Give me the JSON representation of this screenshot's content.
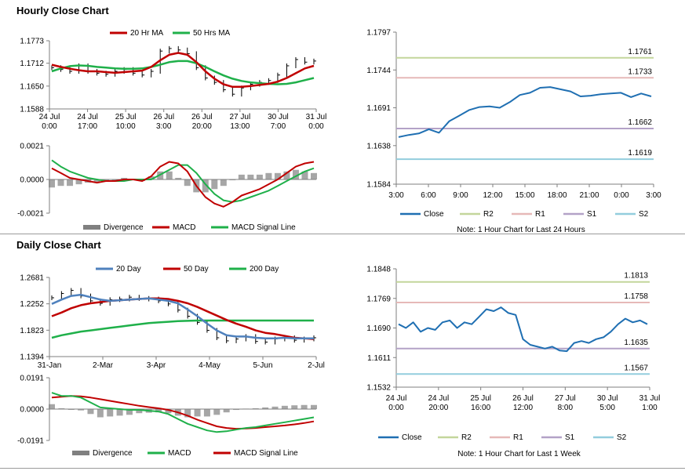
{
  "sections": {
    "hourly_title": "Hourly Close Chart",
    "daily_title": "Daily Close Chart"
  },
  "colors": {
    "price": "#000000",
    "ma_red": "#c00000",
    "ma_green": "#1fb04a",
    "ma_blue": "#4f81bd",
    "close": "#1f6fb2",
    "r2": "#c3d69b",
    "r1": "#e6b9b8",
    "s1": "#b3a2c7",
    "s2": "#93cddd",
    "divergence": "#808080",
    "axis": "#7f7f7f"
  },
  "chart_data": [
    {
      "id": "hourly_price",
      "type": "line",
      "legend": [
        "20 Hr MA",
        "50 Hrs MA"
      ],
      "ylim": [
        1.1588,
        1.1773
      ],
      "yticks": [
        "1.1773",
        "1.1712",
        "1.1650",
        "1.1588"
      ],
      "xticks": [
        [
          "24 Jul",
          "0:00"
        ],
        [
          "24 Jul",
          "17:00"
        ],
        [
          "25 Jul",
          "10:00"
        ],
        [
          "26 Jul",
          "3:00"
        ],
        [
          "26 Jul",
          "20:00"
        ],
        [
          "27 Jul",
          "13:00"
        ],
        [
          "30 Jul",
          "7:00"
        ],
        [
          "31 Jul",
          "0:00"
        ]
      ],
      "series": [
        {
          "name": "Price",
          "color": "price",
          "values": [
            1.17,
            1.1695,
            1.169,
            1.1705,
            1.169,
            1.1685,
            1.1682,
            1.169,
            1.1695,
            1.1685,
            1.168,
            1.169,
            1.1745,
            1.1752,
            1.1748,
            1.1738,
            1.17,
            1.1672,
            1.166,
            1.164,
            1.1628,
            1.1645,
            1.1655,
            1.166,
            1.1665,
            1.168,
            1.1705,
            1.1722,
            1.1715,
            1.1718
          ]
        },
        {
          "name": "20 Hr MA",
          "color": "ma_red",
          "values": [
            1.1708,
            1.1702,
            1.1697,
            1.1693,
            1.169,
            1.169,
            1.1688,
            1.1686,
            1.1688,
            1.169,
            1.1692,
            1.1702,
            1.172,
            1.1735,
            1.174,
            1.1735,
            1.1715,
            1.169,
            1.167,
            1.1655,
            1.1648,
            1.1648,
            1.165,
            1.1653,
            1.1656,
            1.1662,
            1.1672,
            1.1685,
            1.1698,
            1.1705
          ]
        },
        {
          "name": "50 Hrs MA",
          "color": "ma_green",
          "values": [
            1.169,
            1.1698,
            1.1704,
            1.1706,
            1.1705,
            1.1702,
            1.17,
            1.1698,
            1.1697,
            1.1697,
            1.1698,
            1.1702,
            1.1708,
            1.1715,
            1.1718,
            1.1718,
            1.1712,
            1.1702,
            1.169,
            1.1679,
            1.167,
            1.1664,
            1.166,
            1.1658,
            1.1656,
            1.1655,
            1.1656,
            1.166,
            1.1666,
            1.1672
          ]
        }
      ]
    },
    {
      "id": "hourly_macd",
      "type": "line",
      "legend": [
        "Divergence",
        "MACD",
        "MACD Signal Line"
      ],
      "ylim": [
        -0.0021,
        0.0021
      ],
      "yticks": [
        "0.0021",
        "0.0000",
        "-0.0021"
      ],
      "series": [
        {
          "name": "MACD",
          "color": "ma_red",
          "values": [
            0.0007,
            0.0004,
            0.0001,
            0.0,
            -0.0001,
            -0.0002,
            -0.0001,
            -0.0001,
            0.0,
            0.0,
            -0.0001,
            0.0002,
            0.0008,
            0.0011,
            0.001,
            0.0005,
            -0.0004,
            -0.0011,
            -0.0015,
            -0.0017,
            -0.0014,
            -0.001,
            -0.0008,
            -0.0006,
            -0.0003,
            0.0,
            0.0004,
            0.0008,
            0.001,
            0.0011
          ]
        },
        {
          "name": "MACD Signal Line",
          "color": "ma_green",
          "values": [
            0.0012,
            0.0008,
            0.0005,
            0.0003,
            0.0001,
            0.0,
            -0.0001,
            -0.0001,
            -0.0001,
            0.0,
            0.0,
            0.0,
            0.0003,
            0.0006,
            0.0009,
            0.0009,
            0.0004,
            -0.0003,
            -0.0009,
            -0.0013,
            -0.0014,
            -0.0013,
            -0.0011,
            -0.0009,
            -0.0007,
            -0.0004,
            -0.0001,
            0.0002,
            0.0005,
            0.0007
          ]
        },
        {
          "name": "Divergence",
          "color": "divergence",
          "values": [
            -0.0005,
            -0.0004,
            -0.0004,
            -0.0003,
            -0.0002,
            -0.0002,
            0.0,
            0.0,
            0.0001,
            0.0,
            -0.0001,
            0.0002,
            0.0005,
            0.0005,
            0.0001,
            -0.0004,
            -0.0008,
            -0.0008,
            -0.0006,
            -0.0004,
            0.0,
            0.0003,
            0.0003,
            0.0003,
            0.0004,
            0.0004,
            0.0005,
            0.0006,
            0.0005,
            0.0004
          ]
        }
      ]
    },
    {
      "id": "hourly_pivot",
      "type": "line",
      "legend": [
        "Close",
        "R2",
        "R1",
        "S1",
        "S2"
      ],
      "note": "Note: 1 Hour Chart for Last 24 Hours",
      "ylim": [
        1.1584,
        1.1797
      ],
      "yticks": [
        "1.1797",
        "1.1744",
        "1.1691",
        "1.1638",
        "1.1584"
      ],
      "xticks": [
        "3:00",
        "6:00",
        "9:00",
        "12:00",
        "15:00",
        "18:00",
        "21:00",
        "0:00",
        "3:00"
      ],
      "levels": [
        {
          "name": "R2",
          "value": 1.1761,
          "label": "1.1761",
          "color": "r2"
        },
        {
          "name": "R1",
          "value": 1.1733,
          "label": "1.1733",
          "color": "r1"
        },
        {
          "name": "S1",
          "value": 1.1662,
          "label": "1.1662",
          "color": "s1"
        },
        {
          "name": "S2",
          "value": 1.1619,
          "label": "1.1619",
          "color": "s2"
        }
      ],
      "series": [
        {
          "name": "Close",
          "color": "close",
          "values": [
            1.165,
            1.1653,
            1.1655,
            1.1661,
            1.1656,
            1.1672,
            1.168,
            1.1688,
            1.1692,
            1.1693,
            1.1691,
            1.1699,
            1.1709,
            1.1712,
            1.1719,
            1.172,
            1.1717,
            1.1714,
            1.1707,
            1.1708,
            1.171,
            1.1711,
            1.1712,
            1.1706,
            1.1711,
            1.1707
          ]
        }
      ]
    },
    {
      "id": "daily_price",
      "type": "line",
      "legend": [
        "20 Day",
        "50 Day",
        "200 Day"
      ],
      "ylim": [
        1.1394,
        1.2681
      ],
      "yticks": [
        "1.2681",
        "1.2252",
        "1.1823",
        "1.1394"
      ],
      "xticks": [
        "31-Jan",
        "2-Mar",
        "3-Apr",
        "4-May",
        "5-Jun",
        "2-Jul"
      ],
      "series": [
        {
          "name": "Price",
          "color": "price",
          "values": [
            1.235,
            1.242,
            1.247,
            1.238,
            1.23,
            1.226,
            1.232,
            1.233,
            1.236,
            1.234,
            1.233,
            1.23,
            1.225,
            1.215,
            1.205,
            1.195,
            1.182,
            1.17,
            1.165,
            1.168,
            1.172,
            1.164,
            1.163,
            1.168,
            1.17,
            1.166,
            1.168,
            1.17
          ]
        },
        {
          "name": "20 Day",
          "color": "ma_blue",
          "values": [
            1.225,
            1.232,
            1.238,
            1.24,
            1.236,
            1.232,
            1.23,
            1.231,
            1.232,
            1.233,
            1.234,
            1.232,
            1.23,
            1.226,
            1.216,
            1.205,
            1.193,
            1.182,
            1.174,
            1.172,
            1.172,
            1.17,
            1.169,
            1.169,
            1.17,
            1.169,
            1.169,
            1.169
          ]
        },
        {
          "name": "50 Day",
          "color": "ma_red",
          "values": [
            1.205,
            1.211,
            1.218,
            1.223,
            1.226,
            1.228,
            1.23,
            1.231,
            1.232,
            1.233,
            1.234,
            1.234,
            1.233,
            1.23,
            1.226,
            1.22,
            1.213,
            1.206,
            1.199,
            1.193,
            1.188,
            1.182,
            1.178,
            1.176,
            1.173,
            1.17,
            1.169,
            1.168
          ]
        },
        {
          "name": "200 Day",
          "color": "ma_green",
          "values": [
            1.17,
            1.174,
            1.177,
            1.18,
            1.182,
            1.184,
            1.186,
            1.188,
            1.19,
            1.192,
            1.194,
            1.195,
            1.196,
            1.197,
            1.1975,
            1.198,
            1.198,
            1.198,
            1.198,
            1.198,
            1.198,
            1.198,
            1.198,
            1.198,
            1.198,
            1.198,
            1.198,
            1.198
          ]
        }
      ]
    },
    {
      "id": "daily_macd",
      "type": "line",
      "legend": [
        "Divergence",
        "MACD",
        "MACD Signal Line"
      ],
      "ylim": [
        -0.0191,
        0.0191
      ],
      "yticks": [
        "0.0191",
        "0.0000",
        "-0.0191"
      ],
      "series": [
        {
          "name": "MACD",
          "color": "ma_green",
          "values": [
            0.01,
            0.008,
            0.008,
            0.007,
            0.004,
            0.001,
            0.0005,
            0.0,
            -0.0005,
            -0.0005,
            -0.001,
            -0.0015,
            -0.003,
            -0.006,
            -0.009,
            -0.011,
            -0.013,
            -0.014,
            -0.0135,
            -0.0125,
            -0.0115,
            -0.011,
            -0.01,
            -0.009,
            -0.008,
            -0.007,
            -0.006,
            -0.005
          ]
        },
        {
          "name": "MACD Signal Line",
          "color": "ma_red",
          "values": [
            0.007,
            0.0075,
            0.008,
            0.0078,
            0.007,
            0.006,
            0.005,
            0.004,
            0.003,
            0.002,
            0.0012,
            0.0005,
            -0.0005,
            -0.002,
            -0.004,
            -0.0065,
            -0.0085,
            -0.0105,
            -0.0115,
            -0.012,
            -0.0118,
            -0.0115,
            -0.011,
            -0.0105,
            -0.01,
            -0.0093,
            -0.0085,
            -0.0075
          ]
        },
        {
          "name": "Divergence",
          "color": "divergence",
          "values": [
            0.003,
            0.0005,
            0.0,
            -0.0008,
            -0.003,
            -0.005,
            -0.0045,
            -0.004,
            -0.0035,
            -0.0025,
            -0.0022,
            -0.002,
            -0.0025,
            -0.004,
            -0.005,
            -0.0045,
            -0.0045,
            -0.0035,
            -0.002,
            -0.0005,
            0.0003,
            0.0005,
            0.001,
            0.0015,
            0.002,
            0.0023,
            0.0025,
            0.0025
          ]
        }
      ]
    },
    {
      "id": "daily_pivot",
      "type": "line",
      "legend": [
        "Close",
        "R2",
        "R1",
        "S1",
        "S2"
      ],
      "note": "Note: 1 Hour Chart for Last 1 Week",
      "ylim": [
        1.1532,
        1.1848
      ],
      "yticks": [
        "1.1848",
        "1.1769",
        "1.1690",
        "1.1611",
        "1.1532"
      ],
      "xticks": [
        [
          "24 Jul",
          "0:00"
        ],
        [
          "24 Jul",
          "20:00"
        ],
        [
          "25 Jul",
          "16:00"
        ],
        [
          "26 Jul",
          "12:00"
        ],
        [
          "27 Jul",
          "8:00"
        ],
        [
          "30 Jul",
          "5:00"
        ],
        [
          "31 Jul",
          "1:00"
        ]
      ],
      "levels": [
        {
          "name": "R2",
          "value": 1.1813,
          "label": "1.1813",
          "color": "r2"
        },
        {
          "name": "R1",
          "value": 1.1758,
          "label": "1.1758",
          "color": "r1"
        },
        {
          "name": "S1",
          "value": 1.1635,
          "label": "1.1635",
          "color": "s1"
        },
        {
          "name": "S2",
          "value": 1.1567,
          "label": "1.1567",
          "color": "s2"
        }
      ],
      "series": [
        {
          "name": "Close",
          "color": "close",
          "values": [
            1.17,
            1.169,
            1.1705,
            1.168,
            1.169,
            1.1685,
            1.1705,
            1.171,
            1.169,
            1.1705,
            1.17,
            1.172,
            1.174,
            1.1735,
            1.1745,
            1.173,
            1.1725,
            1.166,
            1.1645,
            1.164,
            1.1635,
            1.164,
            1.163,
            1.1628,
            1.165,
            1.1655,
            1.165,
            1.166,
            1.1665,
            1.168,
            1.17,
            1.1715,
            1.1705,
            1.171,
            1.17
          ]
        }
      ]
    }
  ]
}
